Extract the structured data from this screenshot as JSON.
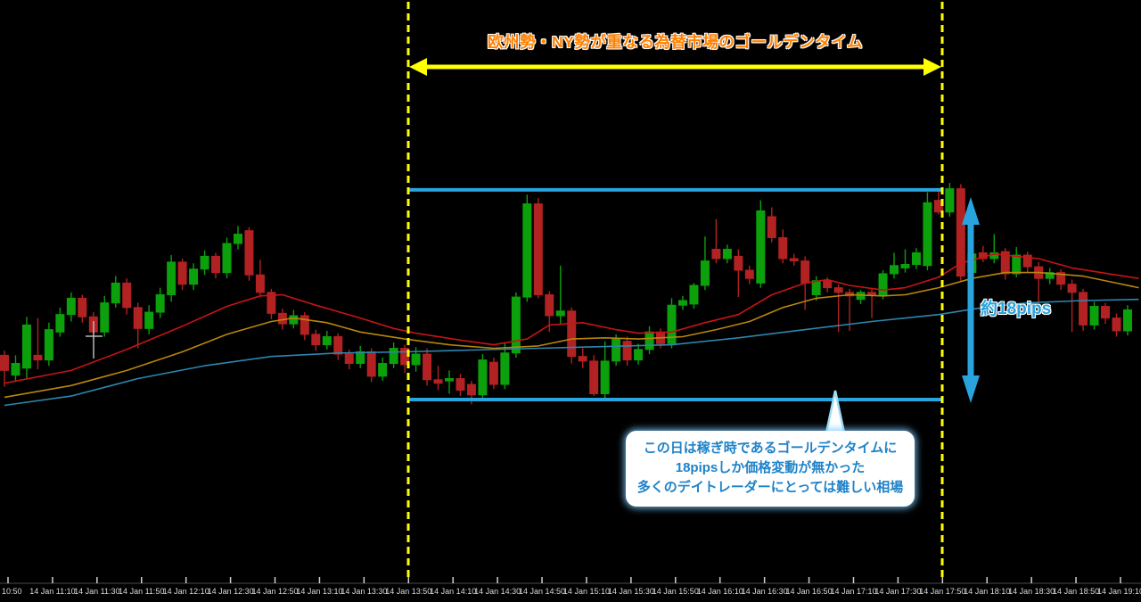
{
  "annotations": {
    "golden_time_title": "欧州勢・NY勢が重なる為替市場のゴールデンタイム",
    "golden_time_start_label": "14 Jan 13:50",
    "golden_time_end_label": "14 Jan 17:50",
    "range_label": "約18pips",
    "callout_lines": [
      "この日は稼ぎ時であるゴールデンタイムに",
      "18pipsしか価格変動が無かった",
      "多くのデイトレーダーにとっては難しい相場"
    ]
  },
  "colors": {
    "background": "#000000",
    "bull": "#0ca00c",
    "bear": "#b22222",
    "ma_fast_red": "#c81414",
    "ma_mid_orange": "#b8860b",
    "ma_slow_blue": "#2e86ad",
    "range_line_blue": "#2aa5dc",
    "arrow_blue": "#29a3dd",
    "session_yellow": "#ffff00",
    "title_orange": "#ff8000",
    "callout_text_blue": "#1e82c8",
    "axis_text": "#d9d9d9",
    "axis_line": "#4a4a4a",
    "crosshair": "#b8b8b8"
  },
  "chart_data": {
    "type": "candlestick",
    "start_time": "14 Jan 10:50",
    "interval_minutes": 5,
    "unit": "pips above lower range line (lower blue line = 0, upper blue line = 18)",
    "range_pips": 18,
    "golden_time_window": {
      "start": "14 Jan 13:50",
      "end": "14 Jan 17:50"
    },
    "x_axis_labels": [
      "10:50",
      "14 Jan 11:10",
      "14 Jan 11:30",
      "14 Jan 11:50",
      "14 Jan 12:10",
      "14 Jan 12:30",
      "14 Jan 12:50",
      "14 Jan 13:10",
      "14 Jan 13:30",
      "14 Jan 13:50",
      "14 Jan 14:10",
      "14 Jan 14:30",
      "14 Jan 14:50",
      "14 Jan 15:10",
      "14 Jan 15:30",
      "14 Jan 15:50",
      "14 Jan 16:10",
      "14 Jan 16:30",
      "14 Jan 16:50",
      "14 Jan 17:10",
      "14 Jan 17:30",
      "14 Jan 17:50",
      "14 Jan 18:10",
      "14 Jan 18:30",
      "14 Jan 18:50",
      "14 Jan 19:10"
    ],
    "candles_ohlc": [
      [
        3.8,
        4.2,
        1.1,
        2.5
      ],
      [
        2.1,
        3.8,
        1.5,
        3.1
      ],
      [
        2.7,
        7.1,
        1.8,
        6.4
      ],
      [
        3.8,
        7.0,
        2.6,
        3.4
      ],
      [
        3.4,
        6.6,
        2.9,
        6.0
      ],
      [
        5.8,
        7.9,
        5.4,
        7.3
      ],
      [
        7.3,
        9.2,
        6.7,
        8.7
      ],
      [
        8.7,
        9.0,
        6.6,
        7.1
      ],
      [
        7.1,
        7.5,
        5.2,
        5.8
      ],
      [
        5.8,
        8.9,
        5.4,
        8.3
      ],
      [
        8.3,
        10.6,
        7.9,
        10.0
      ],
      [
        10.0,
        10.4,
        7.3,
        7.9
      ],
      [
        7.9,
        8.3,
        4.4,
        6.1
      ],
      [
        6.1,
        8.1,
        5.6,
        7.5
      ],
      [
        7.5,
        9.6,
        7.0,
        9.0
      ],
      [
        9.0,
        12.4,
        8.4,
        11.8
      ],
      [
        11.8,
        12.1,
        9.4,
        9.9
      ],
      [
        9.9,
        11.7,
        9.4,
        11.2
      ],
      [
        11.2,
        12.8,
        10.7,
        12.3
      ],
      [
        12.3,
        12.6,
        10.4,
        10.9
      ],
      [
        10.9,
        13.9,
        10.4,
        13.4
      ],
      [
        13.4,
        14.9,
        12.9,
        14.2
      ],
      [
        14.5,
        14.8,
        10.2,
        10.7
      ],
      [
        10.7,
        12.0,
        8.9,
        9.2
      ],
      [
        9.2,
        9.5,
        6.9,
        7.4
      ],
      [
        7.4,
        7.8,
        6.0,
        6.5
      ],
      [
        6.5,
        7.7,
        6.1,
        7.2
      ],
      [
        7.2,
        7.5,
        5.1,
        5.6
      ],
      [
        5.6,
        6.0,
        4.2,
        4.7
      ],
      [
        4.7,
        5.9,
        4.3,
        5.4
      ],
      [
        5.4,
        5.7,
        3.4,
        3.9
      ],
      [
        3.9,
        4.3,
        2.6,
        3.1
      ],
      [
        3.1,
        4.6,
        2.7,
        4.1
      ],
      [
        4.1,
        4.4,
        1.5,
        2.0
      ],
      [
        2.0,
        3.6,
        1.6,
        3.1
      ],
      [
        3.1,
        4.9,
        2.7,
        4.4
      ],
      [
        4.4,
        4.7,
        2.3,
        3.0
      ],
      [
        3.0,
        4.5,
        2.4,
        3.9
      ],
      [
        3.9,
        4.4,
        1.2,
        1.7
      ],
      [
        1.7,
        2.9,
        0.8,
        1.4
      ],
      [
        1.6,
        2.5,
        0.5,
        1.8
      ],
      [
        1.8,
        2.2,
        0.3,
        0.8
      ],
      [
        1.3,
        1.6,
        -0.4,
        0.4
      ],
      [
        0.4,
        3.9,
        -0.1,
        3.4
      ],
      [
        3.2,
        3.6,
        0.9,
        1.3
      ],
      [
        1.3,
        4.9,
        0.9,
        4.0
      ],
      [
        4.0,
        9.2,
        3.6,
        8.8
      ],
      [
        8.8,
        17.6,
        8.4,
        16.8
      ],
      [
        16.8,
        17.3,
        8.7,
        9.0
      ],
      [
        9.0,
        9.3,
        5.8,
        7.2
      ],
      [
        7.2,
        11.5,
        6.4,
        7.6
      ],
      [
        7.6,
        7.9,
        3.1,
        3.7
      ],
      [
        3.7,
        4.4,
        2.7,
        3.3
      ],
      [
        3.3,
        3.8,
        0.3,
        0.5
      ],
      [
        0.5,
        5.0,
        -0.1,
        3.3
      ],
      [
        3.3,
        5.6,
        2.9,
        5.2
      ],
      [
        5.0,
        5.4,
        2.9,
        3.4
      ],
      [
        3.4,
        4.8,
        3.0,
        4.3
      ],
      [
        4.3,
        6.3,
        3.9,
        5.8
      ],
      [
        5.8,
        6.1,
        4.4,
        4.8
      ],
      [
        4.8,
        8.7,
        4.4,
        8.1
      ],
      [
        8.1,
        8.9,
        7.7,
        8.5
      ],
      [
        8.2,
        10.0,
        7.8,
        9.8
      ],
      [
        9.8,
        14.0,
        9.4,
        11.9
      ],
      [
        12.9,
        15.5,
        11.7,
        12.1
      ],
      [
        12.1,
        13.3,
        11.7,
        12.9
      ],
      [
        12.3,
        12.9,
        8.8,
        11.1
      ],
      [
        11.1,
        11.5,
        9.9,
        10.4
      ],
      [
        10.0,
        17.1,
        9.6,
        16.2
      ],
      [
        15.7,
        16.5,
        13.5,
        13.9
      ],
      [
        13.9,
        14.6,
        11.7,
        12.1
      ],
      [
        12.1,
        12.5,
        11.5,
        11.9
      ],
      [
        11.9,
        12.3,
        7.7,
        10.0
      ],
      [
        9.0,
        10.6,
        8.5,
        10.2
      ],
      [
        10.2,
        10.5,
        9.2,
        9.6
      ],
      [
        9.6,
        9.9,
        5.8,
        9.2
      ],
      [
        9.2,
        9.5,
        5.9,
        8.9
      ],
      [
        8.6,
        9.4,
        8.2,
        9.2
      ],
      [
        9.2,
        9.5,
        7.0,
        9.0
      ],
      [
        9.0,
        11.1,
        8.6,
        10.8
      ],
      [
        10.8,
        12.6,
        10.4,
        11.5
      ],
      [
        11.3,
        12.9,
        10.9,
        11.6
      ],
      [
        11.6,
        13.0,
        11.2,
        12.6
      ],
      [
        11.5,
        17.8,
        11.1,
        16.9
      ],
      [
        17.1,
        17.9,
        15.9,
        16.1
      ],
      [
        16.1,
        18.6,
        15.7,
        18.1
      ],
      [
        18.1,
        18.5,
        10.2,
        10.6
      ],
      [
        10.9,
        13.0,
        10.4,
        12.5
      ],
      [
        12.6,
        13.2,
        11.8,
        12.1
      ],
      [
        12.1,
        14.2,
        11.7,
        12.6
      ],
      [
        12.7,
        13.0,
        10.3,
        10.8
      ],
      [
        10.8,
        13.1,
        10.5,
        12.4
      ],
      [
        12.4,
        12.7,
        10.9,
        11.4
      ],
      [
        11.4,
        11.8,
        8.3,
        10.4
      ],
      [
        10.4,
        11.3,
        9.9,
        10.9
      ],
      [
        10.9,
        11.2,
        9.4,
        9.9
      ],
      [
        9.9,
        10.3,
        5.8,
        9.2
      ],
      [
        9.2,
        9.5,
        5.9,
        6.4
      ],
      [
        6.4,
        8.4,
        6.0,
        8.0
      ],
      [
        8.0,
        8.3,
        6.5,
        7.0
      ],
      [
        7.0,
        7.4,
        5.4,
        5.9
      ],
      [
        5.9,
        8.1,
        5.5,
        7.7
      ]
    ],
    "moving_averages": [
      {
        "name": "fast-ma-red",
        "color": "#c81414",
        "points": [
          [
            0,
            1.4
          ],
          [
            6,
            2.5
          ],
          [
            11,
            4.3
          ],
          [
            16,
            6.3
          ],
          [
            20,
            8.0
          ],
          [
            23,
            8.9
          ],
          [
            25,
            9.0
          ],
          [
            28,
            8.1
          ],
          [
            32,
            7.0
          ],
          [
            35,
            6.1
          ],
          [
            37,
            5.7
          ],
          [
            41,
            5.1
          ],
          [
            44,
            4.7
          ],
          [
            47,
            5.2
          ],
          [
            49,
            6.4
          ],
          [
            52,
            6.6
          ],
          [
            55,
            6.0
          ],
          [
            57,
            5.7
          ],
          [
            60,
            5.8
          ],
          [
            63,
            6.6
          ],
          [
            66,
            7.3
          ],
          [
            69,
            9.0
          ],
          [
            72,
            10.0
          ],
          [
            74,
            10.3
          ],
          [
            76,
            9.8
          ],
          [
            79,
            9.4
          ],
          [
            81,
            9.6
          ],
          [
            84,
            10.5
          ],
          [
            86,
            11.7
          ],
          [
            89,
            12.5
          ],
          [
            93,
            12.1
          ],
          [
            96,
            11.3
          ],
          [
            100,
            10.7
          ],
          [
            102,
            10.4
          ]
        ]
      },
      {
        "name": "mid-ma-orange",
        "color": "#b8860b",
        "points": [
          [
            0,
            0.2
          ],
          [
            6,
            1.2
          ],
          [
            11,
            2.5
          ],
          [
            16,
            4.1
          ],
          [
            20,
            5.6
          ],
          [
            24,
            6.7
          ],
          [
            26,
            7.0
          ],
          [
            29,
            6.6
          ],
          [
            32,
            5.8
          ],
          [
            36,
            5.2
          ],
          [
            40,
            4.7
          ],
          [
            44,
            4.4
          ],
          [
            48,
            4.6
          ],
          [
            51,
            5.2
          ],
          [
            54,
            5.3
          ],
          [
            57,
            5.2
          ],
          [
            61,
            5.4
          ],
          [
            64,
            6.0
          ],
          [
            67,
            6.7
          ],
          [
            70,
            7.9
          ],
          [
            73,
            8.7
          ],
          [
            76,
            9.0
          ],
          [
            79,
            8.9
          ],
          [
            81,
            9.0
          ],
          [
            84,
            9.6
          ],
          [
            87,
            10.4
          ],
          [
            90,
            10.9
          ],
          [
            93,
            10.9
          ],
          [
            97,
            10.6
          ],
          [
            100,
            10.0
          ],
          [
            102,
            9.6
          ]
        ]
      },
      {
        "name": "slow-ma-blue",
        "color": "#2e86ad",
        "points": [
          [
            0,
            -0.5
          ],
          [
            6,
            0.3
          ],
          [
            12,
            1.8
          ],
          [
            18,
            2.9
          ],
          [
            24,
            3.7
          ],
          [
            30,
            4.0
          ],
          [
            36,
            4.1
          ],
          [
            42,
            4.25
          ],
          [
            48,
            4.4
          ],
          [
            54,
            4.55
          ],
          [
            60,
            4.7
          ],
          [
            66,
            5.3
          ],
          [
            72,
            6.0
          ],
          [
            78,
            6.7
          ],
          [
            84,
            7.3
          ],
          [
            88,
            7.9
          ],
          [
            92,
            8.3
          ],
          [
            97,
            8.5
          ],
          [
            102,
            8.6
          ]
        ]
      }
    ]
  }
}
